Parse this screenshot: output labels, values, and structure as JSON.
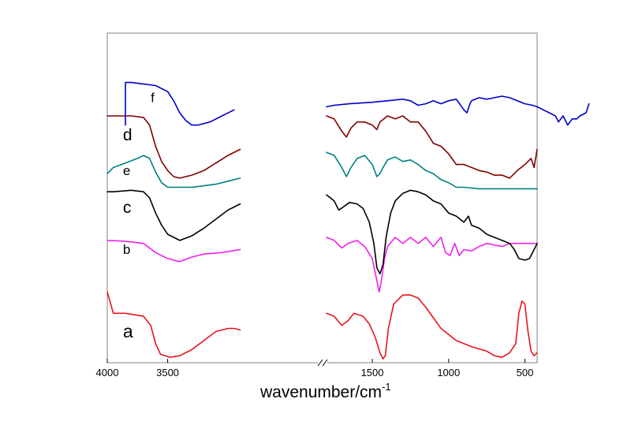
{
  "chart_data": {
    "type": "line",
    "title": "",
    "xlabel": "wavenumber/cm",
    "xlabel_superscript": "-1",
    "ylabel": "",
    "x_reversed": true,
    "x_axis_break": true,
    "segments": [
      {
        "xlim": [
          4000,
          2250
        ]
      },
      {
        "xlim": [
          1800,
          420
        ]
      }
    ],
    "x_ticks": [
      {
        "value": 4000,
        "label": "4000"
      },
      {
        "value": 3500,
        "label": "3500"
      },
      {
        "value": 1500,
        "label": "1500"
      },
      {
        "value": 1000,
        "label": "1000"
      },
      {
        "value": 500,
        "label": "500"
      }
    ],
    "ylim": [
      0,
      100
    ],
    "grid": false,
    "legend": "none",
    "series": [
      {
        "name": "a",
        "color": "#e8141c",
        "points": [
          [
            4000,
            22
          ],
          [
            3950,
            15
          ],
          [
            3850,
            15
          ],
          [
            3700,
            14
          ],
          [
            3640,
            11
          ],
          [
            3600,
            5
          ],
          [
            3560,
            1.5
          ],
          [
            3480,
            0.5
          ],
          [
            3400,
            1
          ],
          [
            3300,
            3
          ],
          [
            3200,
            6
          ],
          [
            3100,
            9
          ],
          [
            3000,
            10
          ],
          [
            2950,
            10
          ],
          [
            2900,
            9.5
          ],
          [
            1800,
            15
          ],
          [
            1750,
            14
          ],
          [
            1700,
            11
          ],
          [
            1660,
            12.5
          ],
          [
            1620,
            15
          ],
          [
            1560,
            14
          ],
          [
            1520,
            11.5
          ],
          [
            1480,
            7
          ],
          [
            1450,
            2
          ],
          [
            1430,
            0
          ],
          [
            1415,
            1
          ],
          [
            1395,
            10
          ],
          [
            1360,
            18
          ],
          [
            1300,
            21
          ],
          [
            1250,
            21
          ],
          [
            1200,
            20
          ],
          [
            1150,
            17
          ],
          [
            1050,
            10
          ],
          [
            950,
            6
          ],
          [
            850,
            4
          ],
          [
            750,
            2.5
          ],
          [
            700,
            1
          ],
          [
            650,
            0.5
          ],
          [
            600,
            2
          ],
          [
            560,
            5
          ],
          [
            540,
            15
          ],
          [
            520,
            19
          ],
          [
            500,
            18
          ],
          [
            480,
            9
          ],
          [
            460,
            2.5
          ],
          [
            440,
            1
          ],
          [
            420,
            2
          ]
        ]
      },
      {
        "name": "b",
        "color": "#ee22ee",
        "points": [
          [
            4000,
            39
          ],
          [
            3900,
            38.8
          ],
          [
            3800,
            38.5
          ],
          [
            3700,
            38
          ],
          [
            3600,
            35
          ],
          [
            3500,
            33
          ],
          [
            3400,
            32
          ],
          [
            3300,
            33.5
          ],
          [
            3200,
            34.5
          ],
          [
            3050,
            35
          ],
          [
            2900,
            36
          ],
          [
            1800,
            40
          ],
          [
            1750,
            39
          ],
          [
            1700,
            36.5
          ],
          [
            1660,
            38
          ],
          [
            1600,
            39
          ],
          [
            1550,
            37
          ],
          [
            1500,
            33
          ],
          [
            1455,
            22
          ],
          [
            1440,
            26
          ],
          [
            1420,
            33
          ],
          [
            1400,
            37
          ],
          [
            1350,
            40
          ],
          [
            1300,
            38
          ],
          [
            1250,
            40
          ],
          [
            1200,
            38
          ],
          [
            1150,
            40
          ],
          [
            1100,
            37
          ],
          [
            1050,
            40
          ],
          [
            1020,
            35
          ],
          [
            990,
            34
          ],
          [
            960,
            38
          ],
          [
            930,
            34
          ],
          [
            900,
            36
          ],
          [
            850,
            35.5
          ],
          [
            800,
            37
          ],
          [
            750,
            38
          ],
          [
            700,
            37.5
          ],
          [
            650,
            37
          ],
          [
            600,
            38
          ],
          [
            500,
            38
          ],
          [
            420,
            38
          ]
        ]
      },
      {
        "name": "c",
        "color": "#000000",
        "points": [
          [
            4000,
            55
          ],
          [
            3950,
            55
          ],
          [
            3800,
            55.5
          ],
          [
            3700,
            55
          ],
          [
            3650,
            53
          ],
          [
            3600,
            48
          ],
          [
            3550,
            44
          ],
          [
            3500,
            41
          ],
          [
            3400,
            39
          ],
          [
            3300,
            40.5
          ],
          [
            3200,
            43
          ],
          [
            3100,
            46
          ],
          [
            3000,
            49
          ],
          [
            2900,
            51
          ],
          [
            1800,
            54
          ],
          [
            1750,
            52
          ],
          [
            1720,
            49
          ],
          [
            1690,
            50
          ],
          [
            1650,
            51.5
          ],
          [
            1600,
            51
          ],
          [
            1560,
            49.5
          ],
          [
            1520,
            45
          ],
          [
            1490,
            38
          ],
          [
            1470,
            30
          ],
          [
            1450,
            28
          ],
          [
            1430,
            31
          ],
          [
            1410,
            40
          ],
          [
            1380,
            48
          ],
          [
            1350,
            52
          ],
          [
            1300,
            54.5
          ],
          [
            1250,
            55.5
          ],
          [
            1200,
            55
          ],
          [
            1150,
            54
          ],
          [
            1100,
            52
          ],
          [
            1050,
            51
          ],
          [
            1000,
            48
          ],
          [
            950,
            47
          ],
          [
            900,
            45
          ],
          [
            870,
            47
          ],
          [
            850,
            44
          ],
          [
            800,
            43
          ],
          [
            750,
            41
          ],
          [
            700,
            40
          ],
          [
            650,
            39
          ],
          [
            600,
            38
          ],
          [
            570,
            36
          ],
          [
            540,
            33
          ],
          [
            500,
            32.5
          ],
          [
            470,
            33
          ],
          [
            450,
            35
          ],
          [
            420,
            38
          ]
        ]
      },
      {
        "name": "e",
        "color": "#008080",
        "points": [
          [
            4000,
            61
          ],
          [
            3950,
            63
          ],
          [
            3850,
            64.5
          ],
          [
            3750,
            66
          ],
          [
            3700,
            67
          ],
          [
            3650,
            66
          ],
          [
            3600,
            61.5
          ],
          [
            3550,
            58
          ],
          [
            3500,
            56.5
          ],
          [
            3400,
            56.5
          ],
          [
            3300,
            56.5
          ],
          [
            3200,
            57
          ],
          [
            3100,
            57.5
          ],
          [
            3000,
            58.5
          ],
          [
            2900,
            59.5
          ],
          [
            1800,
            68
          ],
          [
            1750,
            67
          ],
          [
            1700,
            63
          ],
          [
            1670,
            60
          ],
          [
            1640,
            63
          ],
          [
            1600,
            66
          ],
          [
            1550,
            67
          ],
          [
            1500,
            64
          ],
          [
            1470,
            60
          ],
          [
            1450,
            61
          ],
          [
            1430,
            63
          ],
          [
            1400,
            65.5
          ],
          [
            1350,
            66.5
          ],
          [
            1300,
            65
          ],
          [
            1250,
            65.5
          ],
          [
            1200,
            64
          ],
          [
            1150,
            62
          ],
          [
            1100,
            61
          ],
          [
            1050,
            59
          ],
          [
            1000,
            58
          ],
          [
            950,
            56.5
          ],
          [
            900,
            56.5
          ],
          [
            800,
            56
          ],
          [
            700,
            56
          ],
          [
            600,
            56
          ],
          [
            500,
            56
          ],
          [
            420,
            56
          ]
        ]
      },
      {
        "name": "d",
        "color": "#800000",
        "points": [
          [
            4000,
            80
          ],
          [
            3900,
            80
          ],
          [
            3800,
            80
          ],
          [
            3700,
            79.5
          ],
          [
            3650,
            77
          ],
          [
            3600,
            70
          ],
          [
            3550,
            65
          ],
          [
            3500,
            62
          ],
          [
            3450,
            60
          ],
          [
            3400,
            59.5
          ],
          [
            3300,
            60.5
          ],
          [
            3200,
            62
          ],
          [
            3100,
            64.5
          ],
          [
            3000,
            67
          ],
          [
            2900,
            69
          ],
          [
            1800,
            80
          ],
          [
            1750,
            79
          ],
          [
            1700,
            75
          ],
          [
            1670,
            73
          ],
          [
            1640,
            76
          ],
          [
            1600,
            78
          ],
          [
            1550,
            78
          ],
          [
            1500,
            77
          ],
          [
            1470,
            75.5
          ],
          [
            1450,
            78
          ],
          [
            1400,
            80
          ],
          [
            1350,
            79
          ],
          [
            1300,
            80
          ],
          [
            1250,
            78
          ],
          [
            1200,
            78
          ],
          [
            1150,
            75
          ],
          [
            1100,
            71
          ],
          [
            1050,
            70
          ],
          [
            1000,
            67.5
          ],
          [
            950,
            64
          ],
          [
            900,
            64
          ],
          [
            850,
            63
          ],
          [
            800,
            62
          ],
          [
            750,
            61.5
          ],
          [
            700,
            60.5
          ],
          [
            650,
            60.5
          ],
          [
            600,
            59.5
          ],
          [
            550,
            62
          ],
          [
            500,
            64
          ],
          [
            460,
            66
          ],
          [
            440,
            63
          ],
          [
            420,
            69
          ]
        ]
      },
      {
        "name": "f",
        "color": "#0000cc",
        "points": [
          [
            3850,
            77
          ],
          [
            3850,
            91
          ],
          [
            3800,
            91
          ],
          [
            3700,
            90.5
          ],
          [
            3600,
            90
          ],
          [
            3500,
            88
          ],
          [
            3450,
            85
          ],
          [
            3400,
            81
          ],
          [
            3350,
            78.5
          ],
          [
            3300,
            77
          ],
          [
            3250,
            77
          ],
          [
            3150,
            78
          ],
          [
            3050,
            80
          ],
          [
            2950,
            82
          ],
          [
            1800,
            83
          ],
          [
            1750,
            83.5
          ],
          [
            1650,
            84
          ],
          [
            1500,
            84.5
          ],
          [
            1400,
            85
          ],
          [
            1300,
            85.5
          ],
          [
            1250,
            85
          ],
          [
            1200,
            83.5
          ],
          [
            1150,
            84
          ],
          [
            1100,
            85
          ],
          [
            1050,
            84
          ],
          [
            1000,
            85
          ],
          [
            950,
            85.5
          ],
          [
            900,
            82
          ],
          [
            880,
            81
          ],
          [
            860,
            84
          ],
          [
            850,
            85
          ],
          [
            800,
            86
          ],
          [
            750,
            85.5
          ],
          [
            700,
            86
          ],
          [
            650,
            86.5
          ],
          [
            600,
            86
          ],
          [
            550,
            85
          ],
          [
            500,
            84
          ],
          [
            450,
            83.5
          ],
          [
            420,
            83
          ],
          [
            380,
            82
          ],
          [
            340,
            81
          ],
          [
            300,
            80
          ],
          [
            280,
            78
          ],
          [
            250,
            80
          ],
          [
            220,
            77
          ],
          [
            190,
            79
          ],
          [
            160,
            79
          ],
          [
            140,
            80
          ],
          [
            100,
            81
          ],
          [
            80,
            84
          ]
        ]
      }
    ],
    "series_labels": [
      {
        "text": "a",
        "x": 3870,
        "y": 7,
        "size": 23
      },
      {
        "text": "b",
        "x": 3870,
        "y": 34.5,
        "size": 17
      },
      {
        "text": "c",
        "x": 3870,
        "y": 48,
        "size": 21
      },
      {
        "text": "e",
        "x": 3870,
        "y": 60.5,
        "size": 17
      },
      {
        "text": "d",
        "x": 3870,
        "y": 72,
        "size": 21
      },
      {
        "text": "f",
        "x": 3640,
        "y": 84.5,
        "size": 17
      }
    ]
  }
}
